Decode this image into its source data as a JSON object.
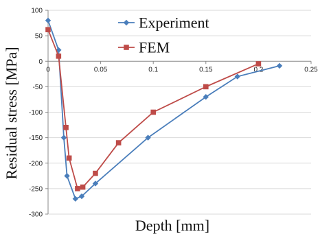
{
  "chart_data": {
    "type": "line",
    "xlabel": "Depth [mm]",
    "ylabel": "Residual stress [MPa]",
    "xlim": [
      0,
      0.25
    ],
    "ylim": [
      -300,
      100
    ],
    "x_ticks": [
      "0",
      "0.05",
      "0.1",
      "0.15",
      "0.2",
      "0.25"
    ],
    "y_ticks": [
      "100",
      "50",
      "0",
      "-50",
      "-100",
      "-150",
      "-200",
      "-250",
      "-300"
    ],
    "x_tick_values": [
      0,
      0.05,
      0.1,
      0.15,
      0.2,
      0.25
    ],
    "y_tick_values": [
      100,
      50,
      0,
      -50,
      -100,
      -150,
      -200,
      -250,
      -300
    ],
    "grid": "horizontal",
    "legend_position": "top-center",
    "series": [
      {
        "name": "Experiment",
        "color": "#4a7ebb",
        "marker": "diamond",
        "points": [
          {
            "x": 0.0,
            "y": 80
          },
          {
            "x": 0.01,
            "y": 22
          },
          {
            "x": 0.015,
            "y": -150
          },
          {
            "x": 0.018,
            "y": -225
          },
          {
            "x": 0.026,
            "y": -270
          },
          {
            "x": 0.032,
            "y": -265
          },
          {
            "x": 0.045,
            "y": -240
          },
          {
            "x": 0.095,
            "y": -150
          },
          {
            "x": 0.15,
            "y": -70
          },
          {
            "x": 0.18,
            "y": -30
          },
          {
            "x": 0.22,
            "y": -9
          }
        ]
      },
      {
        "name": "FEM",
        "color": "#be4b48",
        "marker": "square",
        "points": [
          {
            "x": 0.0,
            "y": 62
          },
          {
            "x": 0.01,
            "y": 10
          },
          {
            "x": 0.017,
            "y": -130
          },
          {
            "x": 0.02,
            "y": -190
          },
          {
            "x": 0.028,
            "y": -250
          },
          {
            "x": 0.033,
            "y": -247
          },
          {
            "x": 0.045,
            "y": -220
          },
          {
            "x": 0.067,
            "y": -160
          },
          {
            "x": 0.1,
            "y": -100
          },
          {
            "x": 0.15,
            "y": -50
          },
          {
            "x": 0.2,
            "y": -5
          }
        ]
      }
    ]
  }
}
